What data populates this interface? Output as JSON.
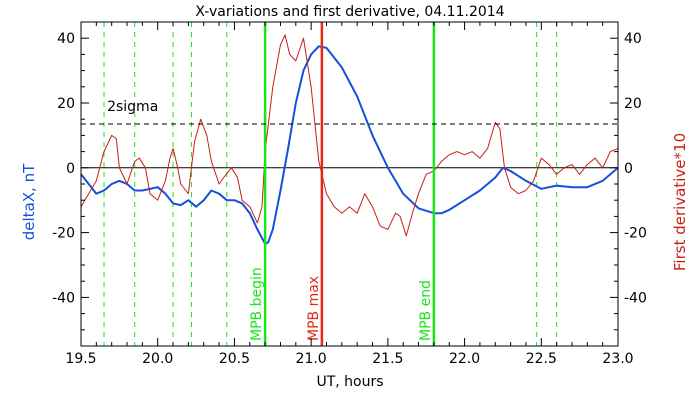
{
  "chart_data": {
    "type": "line",
    "title": "X-variations and first derivative, 04.11.2014",
    "xlabel": "UT, hours",
    "ylabel_left": "deltaX, nT",
    "ylabel_right": "First derivative*10",
    "xlim": [
      19.5,
      23.0
    ],
    "ylim_left": [
      -55,
      45
    ],
    "ylim_right": [
      -55,
      45
    ],
    "x_ticks": [
      "19.5",
      "20.0",
      "20.5",
      "21.0",
      "21.5",
      "22.0",
      "22.5",
      "23.0"
    ],
    "y_ticks_left": [
      "-40",
      "-20",
      "0",
      "20",
      "40"
    ],
    "y_ticks_right": [
      "-40",
      "-20",
      "0",
      "20",
      "40"
    ],
    "threshold": {
      "label": "2sigma",
      "value": 13.5
    },
    "series": [
      {
        "name": "deltaX",
        "axis": "left",
        "color": "#1450dc",
        "points": [
          [
            19.5,
            -2
          ],
          [
            19.55,
            -5
          ],
          [
            19.6,
            -8
          ],
          [
            19.65,
            -7
          ],
          [
            19.7,
            -5
          ],
          [
            19.75,
            -4
          ],
          [
            19.8,
            -5
          ],
          [
            19.85,
            -7
          ],
          [
            19.9,
            -7
          ],
          [
            19.95,
            -6.5
          ],
          [
            20.0,
            -6
          ],
          [
            20.05,
            -8
          ],
          [
            20.1,
            -11
          ],
          [
            20.15,
            -11.5
          ],
          [
            20.2,
            -10
          ],
          [
            20.25,
            -12
          ],
          [
            20.3,
            -10
          ],
          [
            20.35,
            -7
          ],
          [
            20.4,
            -8
          ],
          [
            20.45,
            -10
          ],
          [
            20.5,
            -10
          ],
          [
            20.55,
            -11
          ],
          [
            20.6,
            -14
          ],
          [
            20.65,
            -19
          ],
          [
            20.7,
            -23.5
          ],
          [
            20.72,
            -23
          ],
          [
            20.75,
            -19
          ],
          [
            20.8,
            -7
          ],
          [
            20.85,
            6
          ],
          [
            20.9,
            20
          ],
          [
            20.95,
            30
          ],
          [
            21.0,
            35
          ],
          [
            21.05,
            37.5
          ],
          [
            21.1,
            37
          ],
          [
            21.2,
            31
          ],
          [
            21.3,
            22
          ],
          [
            21.4,
            10
          ],
          [
            21.5,
            0
          ],
          [
            21.6,
            -8
          ],
          [
            21.7,
            -12.5
          ],
          [
            21.8,
            -14
          ],
          [
            21.85,
            -14
          ],
          [
            21.9,
            -13
          ],
          [
            22.0,
            -10
          ],
          [
            22.1,
            -7
          ],
          [
            22.2,
            -3
          ],
          [
            22.25,
            0
          ],
          [
            22.3,
            -1
          ],
          [
            22.4,
            -4
          ],
          [
            22.5,
            -6.5
          ],
          [
            22.55,
            -6
          ],
          [
            22.6,
            -5.5
          ],
          [
            22.7,
            -6
          ],
          [
            22.8,
            -6
          ],
          [
            22.9,
            -4
          ],
          [
            23.0,
            0
          ]
        ]
      },
      {
        "name": "First derivative*10",
        "axis": "right",
        "color": "#c81e14",
        "points": [
          [
            19.5,
            -12
          ],
          [
            19.55,
            -8
          ],
          [
            19.6,
            -4
          ],
          [
            19.65,
            5
          ],
          [
            19.7,
            10
          ],
          [
            19.73,
            9
          ],
          [
            19.75,
            0
          ],
          [
            19.8,
            -5
          ],
          [
            19.85,
            2
          ],
          [
            19.88,
            3
          ],
          [
            19.92,
            0
          ],
          [
            19.95,
            -8
          ],
          [
            20.0,
            -10
          ],
          [
            20.05,
            -4
          ],
          [
            20.08,
            3
          ],
          [
            20.1,
            6
          ],
          [
            20.13,
            0
          ],
          [
            20.15,
            -5
          ],
          [
            20.2,
            -8
          ],
          [
            20.24,
            8
          ],
          [
            20.28,
            15
          ],
          [
            20.32,
            10
          ],
          [
            20.35,
            2
          ],
          [
            20.4,
            -5
          ],
          [
            20.43,
            -3
          ],
          [
            20.48,
            0
          ],
          [
            20.52,
            -3
          ],
          [
            20.55,
            -10
          ],
          [
            20.6,
            -12
          ],
          [
            20.65,
            -17
          ],
          [
            20.68,
            -12
          ],
          [
            20.7,
            5
          ],
          [
            20.75,
            25
          ],
          [
            20.8,
            38
          ],
          [
            20.83,
            41
          ],
          [
            20.86,
            35
          ],
          [
            20.9,
            33
          ],
          [
            20.95,
            40
          ],
          [
            21.0,
            25
          ],
          [
            21.05,
            2
          ],
          [
            21.1,
            -8
          ],
          [
            21.15,
            -12
          ],
          [
            21.2,
            -14
          ],
          [
            21.25,
            -12
          ],
          [
            21.3,
            -14
          ],
          [
            21.35,
            -8
          ],
          [
            21.4,
            -12
          ],
          [
            21.45,
            -18
          ],
          [
            21.5,
            -19
          ],
          [
            21.55,
            -14
          ],
          [
            21.58,
            -15
          ],
          [
            21.62,
            -21
          ],
          [
            21.66,
            -14
          ],
          [
            21.7,
            -8
          ],
          [
            21.75,
            -2
          ],
          [
            21.8,
            -1
          ],
          [
            21.85,
            2
          ],
          [
            21.9,
            4
          ],
          [
            21.95,
            5
          ],
          [
            22.0,
            4
          ],
          [
            22.05,
            5
          ],
          [
            22.1,
            3
          ],
          [
            22.15,
            6
          ],
          [
            22.2,
            14
          ],
          [
            22.23,
            12
          ],
          [
            22.26,
            0
          ],
          [
            22.3,
            -6
          ],
          [
            22.35,
            -8
          ],
          [
            22.4,
            -7
          ],
          [
            22.45,
            -4
          ],
          [
            22.5,
            3
          ],
          [
            22.55,
            1
          ],
          [
            22.6,
            -2
          ],
          [
            22.65,
            0
          ],
          [
            22.7,
            1
          ],
          [
            22.75,
            -2
          ],
          [
            22.8,
            1
          ],
          [
            22.85,
            3
          ],
          [
            22.9,
            0
          ],
          [
            22.95,
            5
          ],
          [
            23.0,
            6
          ]
        ]
      }
    ],
    "vertical_markers": [
      {
        "x": 20.7,
        "label": "MPB begin",
        "color": "#19e619"
      },
      {
        "x": 21.07,
        "label": "MPB max",
        "color": "#e62814"
      },
      {
        "x": 21.8,
        "label": "MPB end",
        "color": "#19e619"
      }
    ],
    "dashed_verticals": [
      19.65,
      19.85,
      20.1,
      20.22,
      20.45,
      22.47,
      22.6
    ],
    "dashed_color": "#19e619",
    "colors": {
      "left_axis_label": "#1450dc",
      "right_axis_label": "#c81e14",
      "frame": "#000000"
    }
  }
}
